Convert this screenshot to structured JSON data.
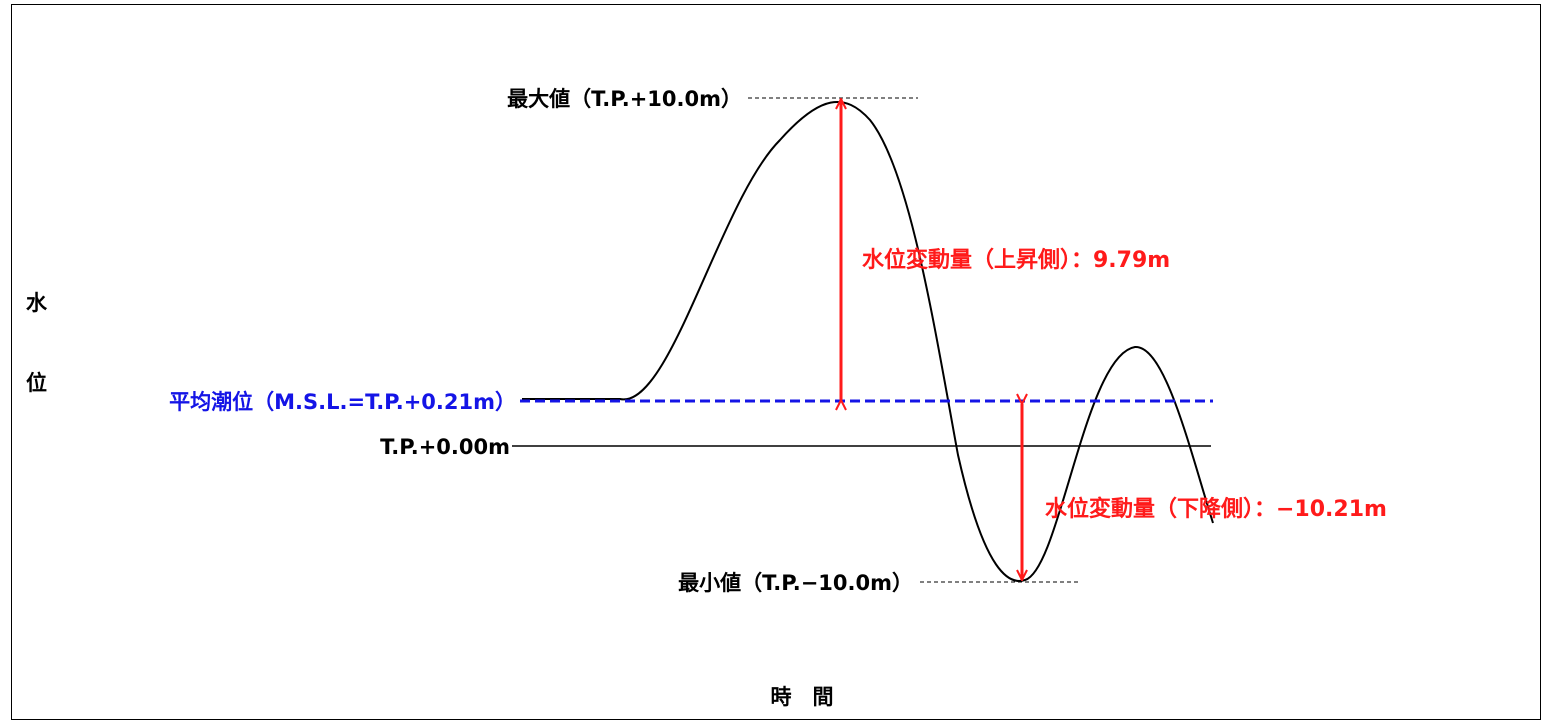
{
  "colors": {
    "line": "#000000",
    "mean_level": "#1414e6",
    "variation": "#ff1a1a"
  },
  "labels": {
    "max": "最大値（T.P.+10.0m）",
    "min": "最小値（T.P.−10.0m）",
    "mean_level": "平均潮位（M.S.L.=T.P.+0.21m）",
    "zero": "T.P.+0.00m",
    "rise": "水位変動量（上昇側）：9.79m",
    "fall": "水位変動量（下降側）：−10.21m"
  },
  "axis": {
    "y_char_1": "水",
    "y_char_2": "位",
    "x": "時　間"
  },
  "levels": {
    "max_m": 10.0,
    "min_m": -10.0,
    "mean_m": 0.21,
    "zero_m": 0.0,
    "rise_m": 9.79,
    "fall_m": -10.21
  }
}
